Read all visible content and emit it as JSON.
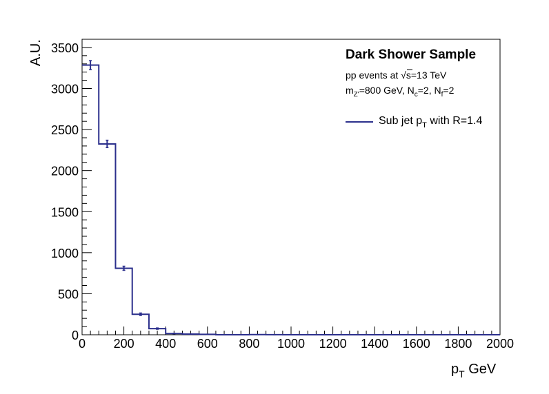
{
  "chart_data": {
    "type": "histogram",
    "title": "",
    "xlabel": "p",
    "xlabel_sub": "T",
    "xlabel_suffix": " GeV",
    "ylabel": "A.U.",
    "xlim": [
      0,
      2000
    ],
    "ylim": [
      0,
      3600
    ],
    "x_ticks": [
      0,
      200,
      400,
      600,
      800,
      1000,
      1200,
      1400,
      1600,
      1800,
      2000
    ],
    "x_tick_labels": [
      "0",
      "200",
      "400",
      "600",
      "800",
      "1000",
      "1200",
      "1400",
      "1600",
      "1800",
      "2000"
    ],
    "y_ticks": [
      0,
      500,
      1000,
      1500,
      2000,
      2500,
      3000,
      3500
    ],
    "y_tick_labels": [
      "0",
      "500",
      "1000",
      "1500",
      "2000",
      "2500",
      "3000",
      "3500"
    ],
    "grid": false,
    "legend_position": "top-right",
    "color": "#2b2f8c",
    "bin_edges": [
      0,
      80,
      160,
      240,
      320,
      400,
      480,
      560,
      640,
      720,
      800,
      880,
      960,
      1040,
      1120,
      1200,
      1280,
      1360,
      1440,
      1520,
      1600,
      1680,
      1760,
      1840,
      1920,
      2000
    ],
    "values": [
      3285,
      2325,
      810,
      250,
      75,
      15,
      8,
      5,
      0,
      0,
      2,
      1,
      0,
      0,
      0,
      0,
      0,
      0,
      0,
      0,
      0,
      0,
      0,
      0,
      0
    ],
    "errors": [
      55,
      45,
      25,
      15,
      8,
      4,
      3,
      2,
      0,
      0,
      1,
      1,
      0,
      0,
      0,
      0,
      0,
      0,
      0,
      0,
      0,
      0,
      0,
      0,
      0
    ],
    "legend": {
      "title": "Dark Shower Sample",
      "line1_prefix": "pp events at ",
      "line1_sqrt": "√s",
      "line1_suffix": "=13 TeV",
      "line2": {
        "m": "m",
        "m_sub": "Z'",
        "m_val": "=800 GeV, N",
        "nc_sub": "c",
        "nc_val": "=2, N",
        "nf_sub": "f",
        "nf_val": "=2"
      },
      "entry": {
        "prefix": "Sub jet p",
        "sub": "T",
        "suffix": " with R=1.4"
      }
    }
  }
}
